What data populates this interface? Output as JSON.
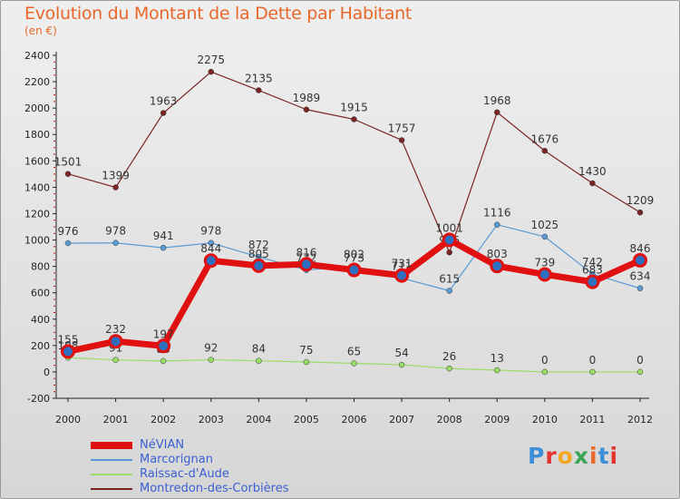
{
  "header": {
    "title": "Evolution du Montant de la Dette par Habitant",
    "subtitle": "(en €)"
  },
  "logo": {
    "text": "Proxiti",
    "colors": [
      "#3a8fd8",
      "#e3342f",
      "#f5a623",
      "#3aa655",
      "#e8672a",
      "#3a8fd8",
      "#e3342f"
    ]
  },
  "chart_data": {
    "type": "line",
    "x": [
      "2000",
      "2001",
      "2002",
      "2003",
      "2004",
      "2005",
      "2006",
      "2007",
      "2008",
      "2009",
      "2010",
      "2011",
      "2012"
    ],
    "ylim": [
      -200,
      2400
    ],
    "yticks": [
      -200,
      0,
      200,
      400,
      600,
      800,
      1000,
      1200,
      1400,
      1600,
      1800,
      2000,
      2200,
      2400
    ],
    "grid": false,
    "legend_position": "bottom-left",
    "series": [
      {
        "name": "Montredon-des-Corbières",
        "color": "#7a2424",
        "width": 1.2,
        "values": [
          1501,
          1399,
          1963,
          2275,
          2135,
          1989,
          1915,
          1757,
          906,
          1968,
          1676,
          1430,
          1209
        ],
        "labels": [
          "1501",
          "1399",
          "1963",
          "2275",
          "2135",
          "1989",
          "1915",
          "1757",
          "906",
          "1968",
          "1676",
          "1430",
          "1209"
        ]
      },
      {
        "name": "Marcorignan",
        "color": "#5b9bd5",
        "width": 1.2,
        "values": [
          976,
          978,
          941,
          978,
          872,
          772,
          802,
          711,
          615,
          1116,
          1025,
          742,
          634
        ],
        "labels": [
          "976",
          "978",
          "941",
          "978",
          "872",
          "772",
          "802",
          "711",
          "615",
          "1116",
          "1025",
          "742",
          "634"
        ]
      },
      {
        "name": "Raissac-d'Aude",
        "color": "#99dd66",
        "width": 1.2,
        "values": [
          108,
          91,
          83,
          92,
          84,
          75,
          65,
          54,
          26,
          13,
          0,
          0,
          0
        ],
        "labels": [
          "108",
          "91",
          "83",
          "92",
          "84",
          "75",
          "65",
          "54",
          "26",
          "13",
          "0",
          "0",
          "0"
        ]
      },
      {
        "name": "NéVIAN",
        "color": "#e01010",
        "width": 7,
        "values": [
          155,
          232,
          197,
          844,
          805,
          816,
          773,
          731,
          1001,
          803,
          739,
          683,
          846
        ],
        "labels": [
          "155",
          "232",
          "197",
          "844",
          "805",
          "816",
          "773",
          "731",
          "1001",
          "803",
          "739",
          "683",
          "846"
        ]
      }
    ],
    "legend": [
      "NéVIAN",
      "Marcorignan",
      "Raissac-d'Aude",
      "Montredon-des-Corbières"
    ]
  }
}
